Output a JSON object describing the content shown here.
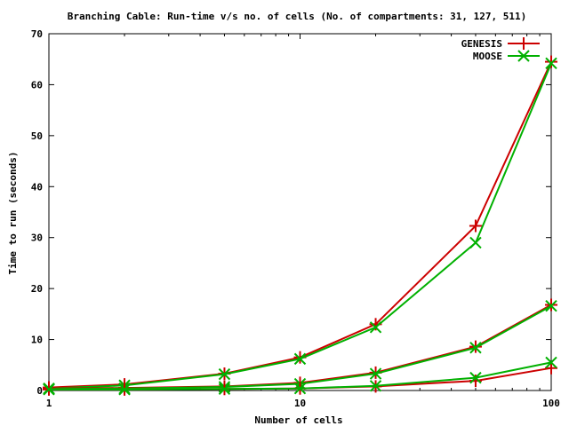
{
  "chart_data": {
    "type": "line",
    "title": "Branching Cable: Run-time v/s no. of cells (No. of compartments: 31, 127, 511)",
    "xlabel": "Number of cells",
    "ylabel": "Time to run (seconds)",
    "x_scale": "log",
    "xlim": [
      1,
      100
    ],
    "ylim": [
      0,
      70
    ],
    "x_ticks": [
      "1",
      "10",
      "100"
    ],
    "y_ticks": [
      "0",
      "10",
      "20",
      "30",
      "40",
      "50",
      "60",
      "70"
    ],
    "grid": false,
    "legend_position": "top-right",
    "x": [
      1,
      2,
      5,
      10,
      20,
      50,
      100
    ],
    "series": [
      {
        "name": "GENESIS",
        "marker": "plus",
        "color": "#cc0000",
        "values": [
          0.6,
          1.2,
          3.3,
          6.5,
          13.0,
          32.3,
          64.5
        ]
      },
      {
        "name": "MOOSE",
        "marker": "cross",
        "color": "#00b000",
        "values": [
          0.4,
          1.0,
          3.2,
          6.2,
          12.4,
          29.0,
          64.2
        ]
      },
      {
        "name": "",
        "marker": "plus",
        "color": "#cc0000",
        "values": [
          0.4,
          0.5,
          0.8,
          1.5,
          3.5,
          8.6,
          16.8
        ]
      },
      {
        "name": "",
        "marker": "cross",
        "color": "#00b000",
        "values": [
          0.3,
          0.4,
          0.7,
          1.3,
          3.3,
          8.4,
          16.6
        ]
      },
      {
        "name": "",
        "marker": "plus",
        "color": "#cc0000",
        "values": [
          0.2,
          0.2,
          0.3,
          0.4,
          0.8,
          1.9,
          4.4
        ]
      },
      {
        "name": "",
        "marker": "cross",
        "color": "#00b000",
        "values": [
          0.2,
          0.2,
          0.3,
          0.4,
          0.9,
          2.5,
          5.5
        ]
      }
    ]
  }
}
